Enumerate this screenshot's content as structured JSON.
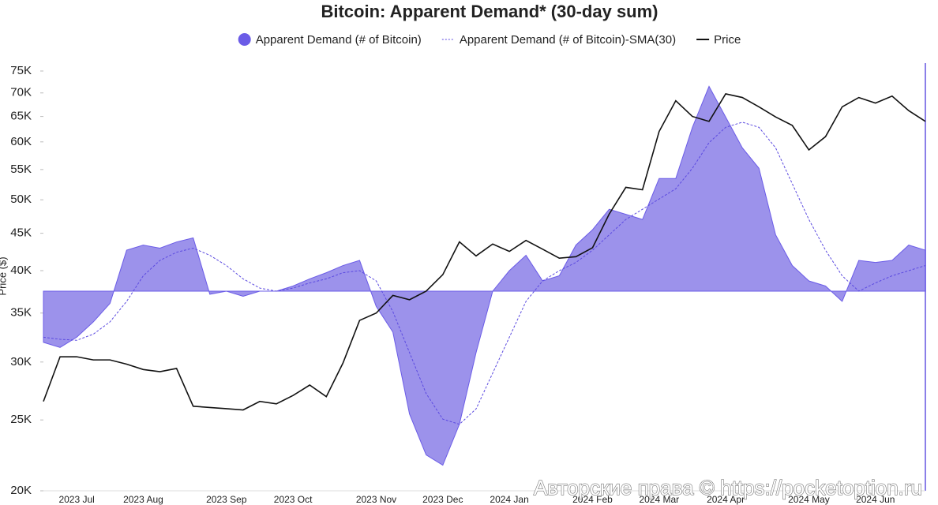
{
  "chart_data": {
    "type": "line",
    "title": "Bitcoin: Apparent Demand* (30-day sum)",
    "y_label": "Price ($)",
    "watermark": "Авторские права © https://pocketoption.ru",
    "categories": [
      null,
      null,
      "2023 Jul",
      null,
      null,
      null,
      "2023 Aug",
      null,
      null,
      null,
      null,
      "2023 Sep",
      null,
      null,
      null,
      "2023 Oct",
      null,
      null,
      null,
      null,
      "2023 Nov",
      null,
      null,
      null,
      "2023 Dec",
      null,
      null,
      null,
      "2024 Jan",
      null,
      null,
      null,
      null,
      "2024 Feb",
      null,
      null,
      null,
      "2024 Mar",
      null,
      null,
      null,
      "2024 Apr",
      null,
      null,
      null,
      null,
      "2024 May",
      null,
      null,
      null,
      "2024 Jun",
      null,
      null,
      null
    ],
    "ylim": [
      20000,
      75000
    ],
    "log_scale": true,
    "yticks": [
      {
        "value": 20000,
        "label": "20K"
      },
      {
        "value": 25000,
        "label": "25K"
      },
      {
        "value": 30000,
        "label": "30K"
      },
      {
        "value": 35000,
        "label": "35K"
      },
      {
        "value": 40000,
        "label": "40K"
      },
      {
        "value": 45000,
        "label": "45K"
      },
      {
        "value": 50000,
        "label": "50K"
      },
      {
        "value": 55000,
        "label": "55K"
      },
      {
        "value": 60000,
        "label": "60K"
      },
      {
        "value": 65000,
        "label": "65K"
      },
      {
        "value": 70000,
        "label": "70K"
      },
      {
        "value": 75000,
        "label": "75K"
      }
    ],
    "y2lim": [
      -195000,
      215000
    ],
    "series": [
      {
        "name": "Apparent Demand (# of Bitcoin)",
        "type": "area",
        "axis": "y2",
        "color": "#6b5ce7",
        "values": [
          -50000,
          -55000,
          -45000,
          -30000,
          -12000,
          40000,
          45000,
          42000,
          48000,
          52000,
          -3000,
          0,
          -5000,
          0,
          0,
          5000,
          12000,
          18000,
          25000,
          30000,
          -15000,
          -40000,
          -120000,
          -160000,
          -170000,
          -130000,
          -60000,
          0,
          20000,
          35000,
          10000,
          15000,
          45000,
          60000,
          80000,
          75000,
          70000,
          110000,
          110000,
          160000,
          200000,
          170000,
          140000,
          120000,
          55000,
          25000,
          10000,
          5000,
          -10000,
          30000,
          28000,
          30000,
          45000,
          40000
        ]
      },
      {
        "name": "Apparent Demand (# of Bitcoin)-SMA(30)",
        "type": "dashed",
        "axis": "y2",
        "color": "#5b4ae0",
        "values": [
          -45000,
          -47000,
          -48000,
          -42000,
          -30000,
          -10000,
          15000,
          30000,
          38000,
          42000,
          35000,
          25000,
          12000,
          3000,
          0,
          3000,
          8000,
          12000,
          18000,
          20000,
          10000,
          -20000,
          -60000,
          -100000,
          -125000,
          -130000,
          -115000,
          -80000,
          -45000,
          -10000,
          10000,
          20000,
          28000,
          40000,
          55000,
          70000,
          80000,
          90000,
          100000,
          120000,
          145000,
          160000,
          165000,
          160000,
          140000,
          105000,
          70000,
          40000,
          15000,
          0,
          8000,
          15000,
          20000,
          25000
        ]
      },
      {
        "name": "Price",
        "type": "line",
        "color": "#111111",
        "values": [
          26500,
          30500,
          30500,
          30200,
          30200,
          29800,
          29300,
          29100,
          29400,
          26100,
          26000,
          25900,
          25800,
          26500,
          26300,
          27000,
          27900,
          26900,
          29900,
          34200,
          35000,
          37000,
          36500,
          37500,
          39500,
          43800,
          41900,
          43500,
          42500,
          44000,
          42800,
          41600,
          41800,
          43000,
          47800,
          52000,
          51600,
          62000,
          68300,
          65000,
          64000,
          69800,
          69000,
          67000,
          64900,
          63200,
          58500,
          61000,
          67000,
          69000,
          67800,
          69300,
          66200,
          64000
        ]
      }
    ]
  }
}
